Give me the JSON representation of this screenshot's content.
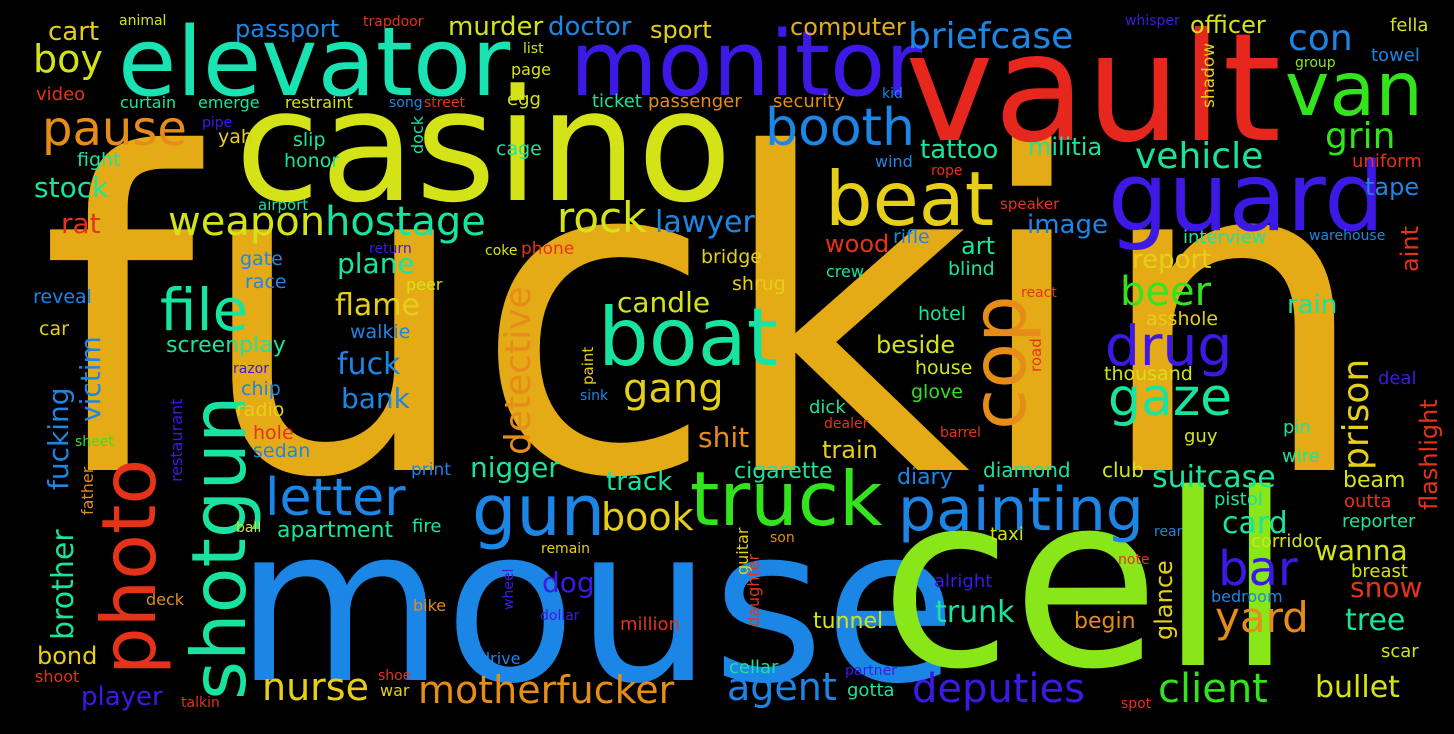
{
  "words": [
    {
      "text": "fuckin",
      "color": "#e5ab17"
    },
    {
      "text": "mouse",
      "color": "#1c86e6"
    },
    {
      "text": "cell",
      "color": "#89e619"
    },
    {
      "text": "casino",
      "color": "#d4e318"
    },
    {
      "text": "vault",
      "color": "#e5271d"
    },
    {
      "text": "elevator",
      "color": "#19e3b3"
    },
    {
      "text": "monitor",
      "color": "#3e19e6"
    },
    {
      "text": "van",
      "color": "#33e31d"
    },
    {
      "text": "guard",
      "color": "#3e19e6"
    },
    {
      "text": "beat",
      "color": "#e5cf18"
    },
    {
      "text": "boat",
      "color": "#19e3a0"
    },
    {
      "text": "cop",
      "color": "#e58c19"
    },
    {
      "text": "truck",
      "color": "#33e31d"
    },
    {
      "text": "gun",
      "color": "#1c86e6"
    },
    {
      "text": "shotgun",
      "color": "#19e3a0"
    },
    {
      "text": "photo",
      "color": "#e5331a"
    },
    {
      "text": "painting",
      "color": "#1c86e6"
    },
    {
      "text": "booth",
      "color": "#1c86e6"
    },
    {
      "text": "drug",
      "color": "#3e19e6"
    },
    {
      "text": "gaze",
      "color": "#19e3a0"
    },
    {
      "text": "pause",
      "color": "#e58c19"
    },
    {
      "text": "letter",
      "color": "#1c86e6"
    },
    {
      "text": "file",
      "color": "#19e3a0"
    },
    {
      "text": "hostage",
      "color": "#19e3a0"
    },
    {
      "text": "weapon",
      "color": "#d4e318"
    },
    {
      "text": "rock",
      "color": "#d4e318"
    },
    {
      "text": "gang",
      "color": "#e5cf18"
    },
    {
      "text": "detective",
      "color": "#e58c19"
    },
    {
      "text": "briefcase",
      "color": "#1c86e6"
    },
    {
      "text": "con",
      "color": "#1c86e6"
    },
    {
      "text": "vehicle",
      "color": "#19e3a0"
    },
    {
      "text": "grin",
      "color": "#33e31d"
    },
    {
      "text": "beer",
      "color": "#33e31d"
    },
    {
      "text": "prison",
      "color": "#e5cf18"
    },
    {
      "text": "client",
      "color": "#33e31d"
    },
    {
      "text": "deputies",
      "color": "#3e19e6"
    },
    {
      "text": "motherfucker",
      "color": "#e58c19"
    },
    {
      "text": "nurse",
      "color": "#e5cf18"
    },
    {
      "text": "agent",
      "color": "#1c86e6"
    },
    {
      "text": "bar",
      "color": "#3e19e6"
    },
    {
      "text": "yard",
      "color": "#e58c19"
    },
    {
      "text": "bullet",
      "color": "#d4e318"
    },
    {
      "text": "book",
      "color": "#e5cf18"
    },
    {
      "text": "suitcase",
      "color": "#19e3a0"
    },
    {
      "text": "card",
      "color": "#19e3a0"
    },
    {
      "text": "wanna",
      "color": "#d4e318"
    },
    {
      "text": "boy",
      "color": "#d4e318"
    },
    {
      "text": "lawyer",
      "color": "#1c86e6"
    },
    {
      "text": "flame",
      "color": "#e5cf18"
    },
    {
      "text": "fuck",
      "color": "#1c86e6"
    },
    {
      "text": "victim",
      "color": "#1c86e6"
    },
    {
      "text": "brother",
      "color": "#19e3a0"
    },
    {
      "text": "fucking",
      "color": "#1c86e6"
    },
    {
      "text": "tattoo",
      "color": "#19e3a0"
    },
    {
      "text": "militia",
      "color": "#19e3a0"
    },
    {
      "text": "candle",
      "color": "#d4e318"
    },
    {
      "text": "plane",
      "color": "#19e3a0"
    },
    {
      "text": "bank",
      "color": "#1c86e6"
    },
    {
      "text": "stock",
      "color": "#19e3a0"
    },
    {
      "text": "rat",
      "color": "#e5331a"
    },
    {
      "text": "shit",
      "color": "#e58c19"
    },
    {
      "text": "nigger",
      "color": "#19e3a0"
    },
    {
      "text": "track",
      "color": "#19e3a0"
    },
    {
      "text": "dog",
      "color": "#3e19e6"
    },
    {
      "text": "trunk",
      "color": "#19e3a0"
    },
    {
      "text": "tree",
      "color": "#19e3a0"
    },
    {
      "text": "snow",
      "color": "#e5331a"
    },
    {
      "text": "rain",
      "color": "#19e3a0"
    },
    {
      "text": "report",
      "color": "#e5cf18"
    },
    {
      "text": "beside",
      "color": "#d4e318"
    },
    {
      "text": "art",
      "color": "#19e3a0"
    },
    {
      "text": "image",
      "color": "#1c86e6"
    },
    {
      "text": "wood",
      "color": "#e5331a"
    },
    {
      "text": "murder",
      "color": "#d4e318"
    },
    {
      "text": "doctor",
      "color": "#1c86e6"
    },
    {
      "text": "passport",
      "color": "#1c86e6"
    },
    {
      "text": "sport",
      "color": "#e5cf18"
    },
    {
      "text": "computer",
      "color": "#e5ab17"
    },
    {
      "text": "officer",
      "color": "#d4e318"
    },
    {
      "text": "cart",
      "color": "#e5cf18"
    },
    {
      "text": "train",
      "color": "#e5cf18"
    },
    {
      "text": "bond",
      "color": "#e5cf18"
    },
    {
      "text": "player",
      "color": "#3e19e6"
    },
    {
      "text": "apartment",
      "color": "#19e3a0"
    },
    {
      "text": "cigarette",
      "color": "#19e3a0"
    },
    {
      "text": "diary",
      "color": "#1c86e6"
    },
    {
      "text": "diamond",
      "color": "#19e3a0"
    },
    {
      "text": "club",
      "color": "#d4e318"
    },
    {
      "text": "beam",
      "color": "#d4e318"
    },
    {
      "text": "flashlight",
      "color": "#e5331a"
    },
    {
      "text": "aint",
      "color": "#e5331a"
    },
    {
      "text": "tape",
      "color": "#1c86e6"
    },
    {
      "text": "begin",
      "color": "#e58c19"
    },
    {
      "text": "tunnel",
      "color": "#d4e318"
    },
    {
      "text": "glance",
      "color": "#e5cf18"
    },
    {
      "text": "screenplay",
      "color": "#19e3a0"
    },
    {
      "text": "blind",
      "color": "#19e3a0"
    },
    {
      "text": "hotel",
      "color": "#19e3a0"
    },
    {
      "text": "house",
      "color": "#d4e318"
    },
    {
      "text": "glove",
      "color": "#33e31d"
    },
    {
      "text": "thousand",
      "color": "#d4e318"
    },
    {
      "text": "asshole",
      "color": "#e5cf18"
    },
    {
      "text": "interview",
      "color": "#19e3a0"
    },
    {
      "text": "rifle",
      "color": "#1c86e6"
    },
    {
      "text": "shrug",
      "color": "#e5cf18"
    },
    {
      "text": "bridge",
      "color": "#e5cf18"
    },
    {
      "text": "walkie",
      "color": "#1c86e6"
    },
    {
      "text": "gate",
      "color": "#1c86e6"
    },
    {
      "text": "race",
      "color": "#1c86e6"
    },
    {
      "text": "reveal",
      "color": "#1c86e6"
    },
    {
      "text": "car",
      "color": "#e5cf18"
    },
    {
      "text": "radio",
      "color": "#e5cf18"
    },
    {
      "text": "chip",
      "color": "#1c86e6"
    },
    {
      "text": "hole",
      "color": "#e5331a"
    },
    {
      "text": "sedan",
      "color": "#1c86e6"
    },
    {
      "text": "fight",
      "color": "#19e3a0"
    },
    {
      "text": "honor",
      "color": "#19e3a0"
    },
    {
      "text": "slip",
      "color": "#19e3a0"
    },
    {
      "text": "yah",
      "color": "#e5cf18"
    },
    {
      "text": "cage",
      "color": "#19e3a0"
    },
    {
      "text": "egg",
      "color": "#d4e318"
    },
    {
      "text": "ticket",
      "color": "#19e3a0"
    },
    {
      "text": "passenger",
      "color": "#e58c19"
    },
    {
      "text": "security",
      "color": "#e58c19"
    },
    {
      "text": "restraint",
      "color": "#d4e318"
    },
    {
      "text": "curtain",
      "color": "#19e3a0"
    },
    {
      "text": "emerge",
      "color": "#19e3a0"
    },
    {
      "text": "video",
      "color": "#e5331a"
    },
    {
      "text": "page",
      "color": "#d4e318"
    },
    {
      "text": "list",
      "color": "#d4e318"
    },
    {
      "text": "animal",
      "color": "#d4e318"
    },
    {
      "text": "trapdoor",
      "color": "#e5331a"
    },
    {
      "text": "whisper",
      "color": "#3e19e6"
    },
    {
      "text": "fella",
      "color": "#d4e318"
    },
    {
      "text": "towel",
      "color": "#1c86e6"
    },
    {
      "text": "group",
      "color": "#89e619"
    },
    {
      "text": "uniform",
      "color": "#e5331a"
    },
    {
      "text": "shadow",
      "color": "#e5cf18"
    },
    {
      "text": "kid",
      "color": "#1c86e6"
    },
    {
      "text": "song",
      "color": "#1c86e6"
    },
    {
      "text": "street",
      "color": "#e5331a"
    },
    {
      "text": "pipe",
      "color": "#3e19e6"
    },
    {
      "text": "dock",
      "color": "#19e3a0"
    },
    {
      "text": "wind",
      "color": "#1c86e6"
    },
    {
      "text": "rope",
      "color": "#e5331a"
    },
    {
      "text": "airport",
      "color": "#19e3a0"
    },
    {
      "text": "speaker",
      "color": "#e5331a"
    },
    {
      "text": "warehouse",
      "color": "#1c86e6"
    },
    {
      "text": "return",
      "color": "#3e19e6"
    },
    {
      "text": "coke",
      "color": "#d4e318"
    },
    {
      "text": "phone",
      "color": "#e5331a"
    },
    {
      "text": "crew",
      "color": "#19e3a0"
    },
    {
      "text": "peer",
      "color": "#d4e318"
    },
    {
      "text": "react",
      "color": "#e5331a"
    },
    {
      "text": "road",
      "color": "#e5331a"
    },
    {
      "text": "razor",
      "color": "#3e19e6"
    },
    {
      "text": "paint",
      "color": "#e5cf18"
    },
    {
      "text": "sink",
      "color": "#1c86e6"
    },
    {
      "text": "restaurant",
      "color": "#3e19e6"
    },
    {
      "text": "dick",
      "color": "#19e3a0"
    },
    {
      "text": "dealer",
      "color": "#e5331a"
    },
    {
      "text": "barrel",
      "color": "#e5331a"
    },
    {
      "text": "deal",
      "color": "#3e19e6"
    },
    {
      "text": "pin",
      "color": "#19e3a0"
    },
    {
      "text": "guy",
      "color": "#d4e318"
    },
    {
      "text": "wire",
      "color": "#19e3a0"
    },
    {
      "text": "sheet",
      "color": "#33e31d"
    },
    {
      "text": "print",
      "color": "#1c86e6"
    },
    {
      "text": "father",
      "color": "#e58c19"
    },
    {
      "text": "pistol",
      "color": "#19e3a0"
    },
    {
      "text": "outta",
      "color": "#e5331a"
    },
    {
      "text": "reporter",
      "color": "#19e3a0"
    },
    {
      "text": "fire",
      "color": "#19e3a0"
    },
    {
      "text": "ball",
      "color": "#d4e318"
    },
    {
      "text": "taxi",
      "color": "#d4e318"
    },
    {
      "text": "rear",
      "color": "#1c86e6"
    },
    {
      "text": "corridor",
      "color": "#d4e318"
    },
    {
      "text": "son",
      "color": "#e58c19"
    },
    {
      "text": "remain",
      "color": "#e5cf18"
    },
    {
      "text": "guitar",
      "color": "#e5cf18"
    },
    {
      "text": "note",
      "color": "#e5331a"
    },
    {
      "text": "breast",
      "color": "#d4e318"
    },
    {
      "text": "alright",
      "color": "#3e19e6"
    },
    {
      "text": "bedroom",
      "color": "#1c86e6"
    },
    {
      "text": "wheel",
      "color": "#3e19e6"
    },
    {
      "text": "daughter",
      "color": "#e5331a"
    },
    {
      "text": "bike",
      "color": "#e58c19"
    },
    {
      "text": "dollar",
      "color": "#3e19e6"
    },
    {
      "text": "million",
      "color": "#e5331a"
    },
    {
      "text": "deck",
      "color": "#e58c19"
    },
    {
      "text": "scar",
      "color": "#d4e318"
    },
    {
      "text": "drive",
      "color": "#1c86e6"
    },
    {
      "text": "cellar",
      "color": "#19e3a0"
    },
    {
      "text": "partner",
      "color": "#3e19e6"
    },
    {
      "text": "gotta",
      "color": "#19e3a0"
    },
    {
      "text": "shoot",
      "color": "#e5331a"
    },
    {
      "text": "shoe",
      "color": "#e5331a"
    },
    {
      "text": "war",
      "color": "#e5cf18"
    },
    {
      "text": "talkin",
      "color": "#e5331a"
    },
    {
      "text": "spot",
      "color": "#e5331a"
    }
  ]
}
